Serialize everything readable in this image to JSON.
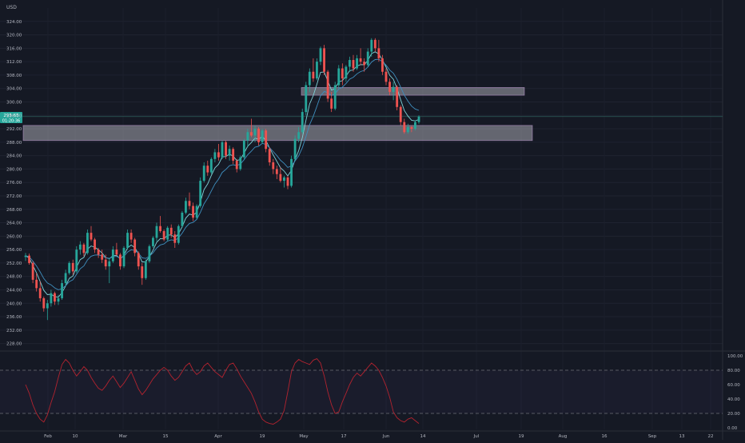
{
  "chart_data": [
    {
      "type": "candlestick",
      "currency_label": "USD",
      "price_tag": {
        "price": "295.65",
        "countdown": "01:20:36"
      },
      "ylim": [
        226,
        328
      ],
      "y_ticks": [
        "228.00",
        "232.00",
        "236.00",
        "240.00",
        "244.00",
        "248.00",
        "252.00",
        "256.00",
        "260.00",
        "264.00",
        "268.00",
        "272.00",
        "276.00",
        "280.00",
        "284.00",
        "288.00",
        "292.00",
        "296.00",
        "300.00",
        "304.00",
        "308.00",
        "312.00",
        "316.00",
        "320.00",
        "324.00"
      ],
      "x_ticks": [
        "Feb",
        "10",
        "Mar",
        "15",
        "Apr",
        "19",
        "May",
        "17",
        "Jun",
        "14",
        "Jul",
        "19",
        "Aug",
        "16",
        "Sep",
        "13",
        "22"
      ],
      "zones": [
        {
          "from": 302.0,
          "to": 304.3,
          "start": "Apr 30",
          "end": "Jul 20"
        },
        {
          "from": 288.5,
          "to": 293.0,
          "start": "Jan 28",
          "end": "Jul 27"
        }
      ],
      "current_price_line": 295.65,
      "moving_averages": [
        "fast",
        "slow"
      ],
      "ohlc": [
        [
          253.8,
          255.0,
          252.6,
          254.2
        ],
        [
          254.2,
          254.8,
          251.5,
          252.0
        ],
        [
          252.0,
          252.5,
          246.0,
          247.0
        ],
        [
          247.0,
          249.0,
          243.5,
          244.5
        ],
        [
          244.5,
          246.5,
          240.5,
          241.5
        ],
        [
          241.5,
          242.0,
          237.5,
          238.5
        ],
        [
          238.5,
          241.0,
          235.0,
          240.0
        ],
        [
          240.0,
          244.0,
          239.0,
          243.0
        ],
        [
          243.0,
          243.5,
          239.5,
          240.5
        ],
        [
          240.5,
          242.5,
          239.5,
          241.5
        ],
        [
          241.5,
          247.0,
          241.0,
          246.0
        ],
        [
          246.0,
          250.0,
          245.0,
          249.0
        ],
        [
          249.0,
          252.5,
          248.5,
          252.0
        ],
        [
          252.0,
          253.0,
          248.5,
          249.5
        ],
        [
          249.5,
          257.0,
          249.0,
          256.0
        ],
        [
          256.0,
          258.5,
          254.5,
          257.5
        ],
        [
          257.5,
          258.0,
          254.0,
          255.0
        ],
        [
          255.0,
          262.0,
          254.5,
          261.0
        ],
        [
          261.0,
          263.0,
          258.5,
          259.0
        ],
        [
          259.0,
          259.5,
          255.0,
          256.0
        ],
        [
          256.0,
          256.5,
          253.5,
          254.5
        ],
        [
          254.5,
          256.0,
          252.0,
          253.0
        ],
        [
          253.0,
          254.5,
          250.0,
          251.0
        ],
        [
          251.0,
          253.5,
          246.0,
          252.5
        ],
        [
          252.5,
          257.0,
          252.0,
          256.0
        ],
        [
          256.0,
          258.0,
          254.0,
          254.5
        ],
        [
          254.5,
          255.0,
          250.0,
          251.0
        ],
        [
          251.0,
          257.0,
          250.5,
          256.5
        ],
        [
          256.5,
          262.0,
          256.0,
          261.0
        ],
        [
          261.0,
          262.0,
          258.0,
          259.0
        ],
        [
          259.0,
          259.5,
          254.0,
          255.0
        ],
        [
          255.0,
          255.5,
          250.0,
          251.0
        ],
        [
          251.0,
          252.0,
          245.5,
          247.5
        ],
        [
          247.5,
          253.0,
          247.0,
          252.5
        ],
        [
          252.5,
          257.5,
          252.0,
          257.0
        ],
        [
          257.0,
          260.0,
          256.5,
          259.5
        ],
        [
          259.5,
          264.0,
          258.5,
          263.0
        ],
        [
          263.0,
          266.0,
          261.0,
          261.5
        ],
        [
          261.5,
          262.0,
          258.5,
          259.0
        ],
        [
          259.0,
          263.0,
          258.5,
          262.5
        ],
        [
          262.5,
          263.5,
          259.5,
          260.5
        ],
        [
          260.5,
          261.5,
          256.5,
          258.0
        ],
        [
          258.0,
          263.5,
          257.5,
          263.0
        ],
        [
          263.0,
          267.5,
          262.5,
          267.0
        ],
        [
          267.0,
          271.5,
          266.5,
          270.5
        ],
        [
          270.5,
          273.0,
          268.0,
          269.0
        ],
        [
          269.0,
          270.0,
          264.5,
          265.5
        ],
        [
          265.5,
          269.5,
          265.0,
          269.0
        ],
        [
          269.0,
          277.5,
          268.5,
          276.5
        ],
        [
          276.5,
          282.0,
          276.0,
          281.0
        ],
        [
          281.0,
          282.5,
          278.0,
          279.0
        ],
        [
          279.0,
          283.5,
          278.5,
          283.0
        ],
        [
          283.0,
          286.0,
          282.0,
          285.0
        ],
        [
          285.0,
          287.5,
          282.5,
          283.5
        ],
        [
          283.5,
          288.5,
          283.0,
          288.0
        ],
        [
          288.0,
          288.5,
          283.0,
          284.0
        ],
        [
          284.0,
          287.0,
          282.5,
          286.0
        ],
        [
          286.0,
          286.5,
          281.5,
          282.5
        ],
        [
          282.5,
          283.0,
          279.0,
          280.0
        ],
        [
          280.0,
          284.0,
          279.5,
          283.5
        ],
        [
          283.5,
          289.0,
          283.0,
          288.5
        ],
        [
          288.5,
          292.0,
          286.5,
          291.0
        ],
        [
          291.0,
          295.0,
          289.5,
          290.0
        ],
        [
          290.0,
          293.0,
          288.0,
          292.0
        ],
        [
          292.0,
          292.5,
          287.0,
          288.0
        ],
        [
          288.0,
          292.0,
          287.5,
          291.5
        ],
        [
          291.5,
          292.0,
          285.0,
          286.0
        ],
        [
          286.0,
          286.5,
          281.0,
          282.0
        ],
        [
          282.0,
          283.0,
          278.5,
          280.0
        ],
        [
          280.0,
          281.0,
          277.0,
          278.5
        ],
        [
          278.5,
          280.5,
          276.0,
          276.5
        ],
        [
          276.5,
          278.0,
          274.5,
          277.5
        ],
        [
          277.5,
          278.0,
          274.0,
          275.0
        ],
        [
          275.0,
          284.0,
          274.5,
          283.0
        ],
        [
          283.0,
          290.0,
          282.5,
          289.0
        ],
        [
          289.0,
          292.5,
          288.0,
          291.0
        ],
        [
          291.0,
          298.0,
          290.5,
          297.0
        ],
        [
          297.0,
          306.0,
          296.0,
          305.0
        ],
        [
          305.0,
          310.0,
          303.0,
          309.0
        ],
        [
          309.0,
          313.0,
          306.0,
          307.0
        ],
        [
          307.0,
          313.0,
          306.5,
          312.0
        ],
        [
          312.0,
          316.5,
          311.0,
          316.0
        ],
        [
          316.0,
          317.0,
          308.0,
          309.0
        ],
        [
          309.0,
          309.5,
          300.0,
          301.0
        ],
        [
          301.0,
          303.0,
          297.0,
          298.0
        ],
        [
          298.0,
          306.0,
          297.5,
          305.0
        ],
        [
          305.0,
          311.0,
          304.0,
          310.0
        ],
        [
          310.0,
          311.5,
          305.0,
          307.0
        ],
        [
          307.0,
          311.0,
          306.0,
          310.5
        ],
        [
          310.5,
          313.5,
          309.0,
          312.5
        ],
        [
          312.5,
          314.0,
          309.0,
          310.0
        ],
        [
          310.0,
          314.0,
          309.5,
          313.0
        ],
        [
          313.0,
          316.0,
          311.0,
          312.0
        ],
        [
          312.0,
          313.0,
          309.0,
          311.0
        ],
        [
          311.0,
          316.0,
          310.5,
          315.0
        ],
        [
          315.0,
          319.0,
          313.5,
          318.5
        ],
        [
          318.5,
          319.0,
          315.0,
          316.0
        ],
        [
          316.0,
          318.5,
          312.0,
          313.0
        ],
        [
          313.0,
          314.0,
          308.0,
          309.0
        ],
        [
          309.0,
          310.0,
          305.0,
          306.0
        ],
        [
          306.0,
          307.0,
          302.0,
          303.0
        ],
        [
          303.0,
          306.0,
          300.5,
          304.5
        ],
        [
          304.5,
          305.0,
          297.5,
          298.5
        ],
        [
          298.5,
          299.0,
          293.0,
          294.0
        ],
        [
          294.0,
          295.0,
          290.5,
          291.0
        ],
        [
          291.0,
          293.5,
          290.5,
          292.5
        ],
        [
          292.5,
          293.0,
          291.0,
          292.0
        ],
        [
          292.0,
          294.5,
          291.5,
          294.0
        ],
        [
          294.0,
          296.0,
          293.5,
          295.65
        ]
      ]
    },
    {
      "type": "line",
      "indicator": "stochastic",
      "ylim": [
        0,
        100
      ],
      "y_ticks": [
        "0.00",
        "20.00",
        "40.00",
        "60.00",
        "80.00",
        "100.00"
      ],
      "bands": [
        20,
        80
      ],
      "values": [
        60,
        48,
        32,
        20,
        12,
        8,
        18,
        35,
        50,
        70,
        88,
        95,
        90,
        80,
        72,
        78,
        85,
        80,
        70,
        62,
        55,
        52,
        58,
        66,
        72,
        64,
        56,
        62,
        70,
        78,
        66,
        54,
        46,
        52,
        60,
        68,
        74,
        80,
        84,
        80,
        72,
        66,
        70,
        78,
        86,
        90,
        80,
        74,
        78,
        86,
        90,
        84,
        78,
        74,
        70,
        80,
        88,
        90,
        82,
        72,
        64,
        56,
        48,
        36,
        22,
        12,
        8,
        6,
        5,
        8,
        12,
        24,
        50,
        78,
        90,
        95,
        92,
        90,
        88,
        94,
        96,
        90,
        72,
        50,
        32,
        20,
        22,
        36,
        48,
        60,
        70,
        76,
        72,
        78,
        84,
        90,
        86,
        80,
        70,
        58,
        42,
        22,
        14,
        10,
        8,
        12,
        14,
        10,
        6
      ]
    }
  ]
}
